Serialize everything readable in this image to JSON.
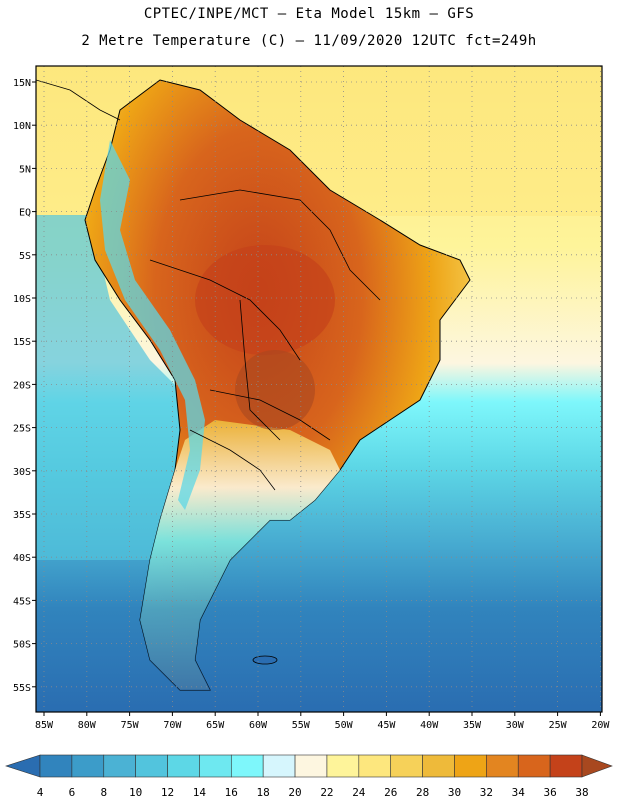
{
  "header": {
    "title_line1": "CPTEC/INPE/MCT –  Eta Model 15km – GFS",
    "title_line2": "2 Metre Temperature (C) – 11/09/2020 12UTC fct=249h"
  },
  "map": {
    "lat_labels": [
      "15N",
      "10N",
      "5N",
      "EQ",
      "5S",
      "10S",
      "15S",
      "20S",
      "25S",
      "30S",
      "35S",
      "40S",
      "45S",
      "50S",
      "55S"
    ],
    "lon_labels": [
      "85W",
      "80W",
      "75W",
      "70W",
      "65W",
      "60W",
      "55W",
      "50W",
      "45W",
      "40W",
      "35W",
      "30W",
      "25W",
      "20W"
    ]
  },
  "colorbar": {
    "labels": [
      "4",
      "6",
      "8",
      "10",
      "12",
      "14",
      "16",
      "18",
      "20",
      "22",
      "24",
      "26",
      "28",
      "30",
      "32",
      "34",
      "36",
      "38"
    ],
    "colors": [
      "#2a6db1",
      "#3184bd",
      "#3c9cc9",
      "#4bb2d4",
      "#52c4dd",
      "#5dd7e6",
      "#6ee8f0",
      "#7ef7fb",
      "#d6f6fd",
      "#fdf6e0",
      "#fef49a",
      "#fde77e",
      "#f6d159",
      "#eeba3a",
      "#eea416",
      "#e38520",
      "#d8651c",
      "#c4421a",
      "#a8481f"
    ]
  }
}
